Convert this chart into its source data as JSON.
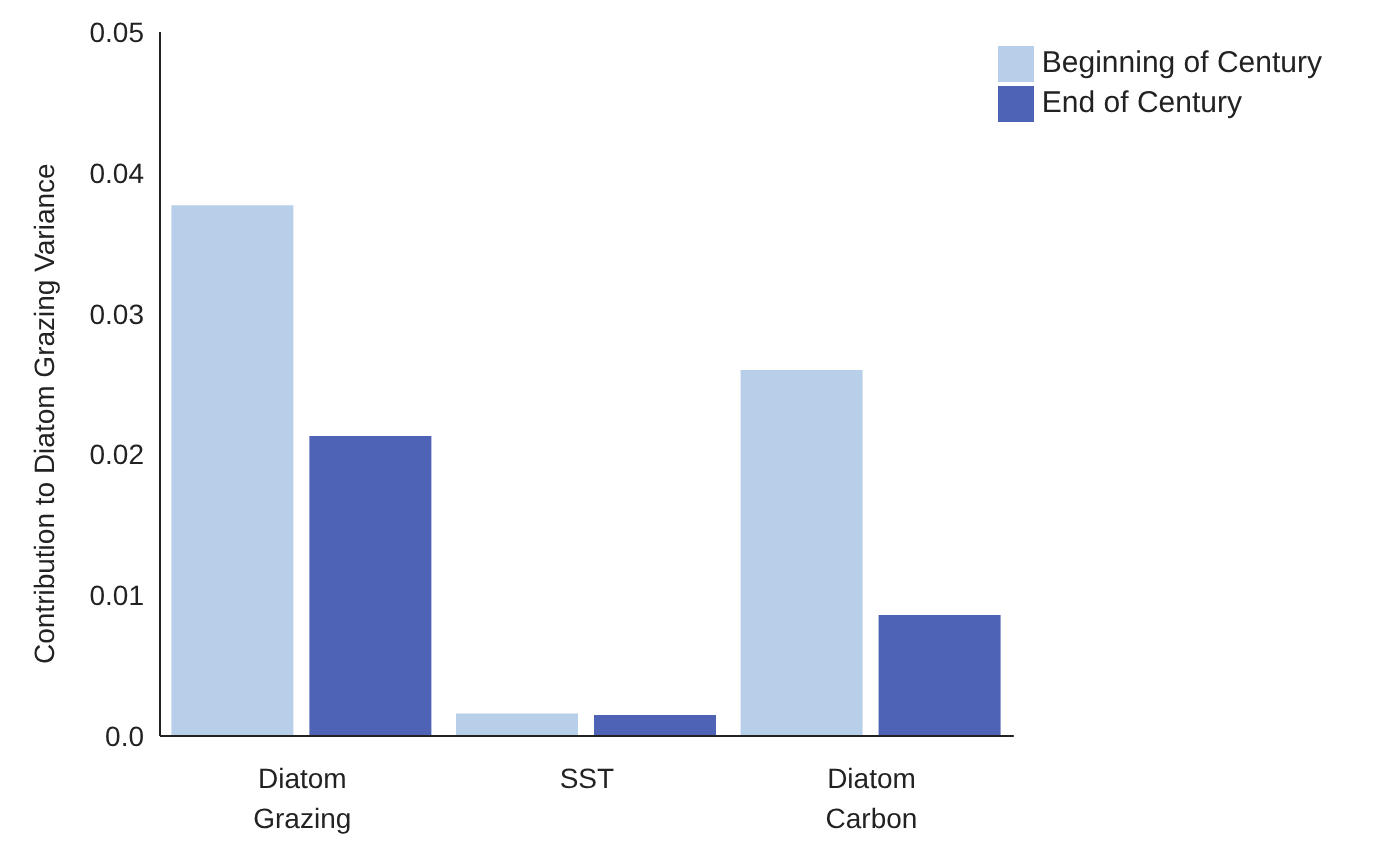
{
  "chart_data": {
    "type": "bar",
    "ylabel": "Contribution to Diatom Grazing Variance",
    "categories": [
      "Diatom Grazing",
      "SST",
      "Diatom Carbon"
    ],
    "series": [
      {
        "name": "Beginning of Century",
        "color": "#b8cfea",
        "values": [
          0.0377,
          0.0016,
          0.026
        ]
      },
      {
        "name": "End of Century",
        "color": "#4e62b6",
        "values": [
          0.0213,
          0.0015,
          0.0086
        ]
      }
    ],
    "ylim": [
      0,
      0.05
    ],
    "yticks": [
      {
        "value": 0,
        "label": "0.0"
      },
      0.01,
      0.02,
      0.03,
      0.04,
      0.05
    ],
    "grid": false,
    "legend": "top right"
  }
}
